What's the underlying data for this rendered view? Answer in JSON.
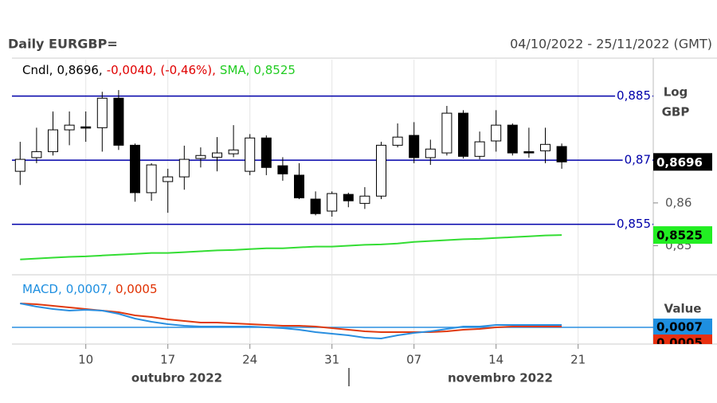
{
  "header": {
    "title": "Daily EURGBP=",
    "date_range": "04/10/2022 - 25/11/2022 (GMT)"
  },
  "chart_data": [
    {
      "type": "candlestick",
      "legend": [
        {
          "text": "Cndl,",
          "color": "#000000"
        },
        {
          "text": "0,8696,",
          "color": "#000000"
        },
        {
          "text": "-0,0040,",
          "color": "#e00000"
        },
        {
          "text": "(-0,46%),",
          "color": "#e00000"
        },
        {
          "text": "SMA,",
          "color": "#22cc22"
        },
        {
          "text": "0,8525",
          "color": "#22cc22"
        }
      ],
      "categories": [
        null,
        null,
        null,
        null,
        "10",
        null,
        null,
        null,
        null,
        "17",
        null,
        null,
        null,
        null,
        "24",
        null,
        null,
        null,
        null,
        "31",
        null,
        null,
        null,
        null,
        "07",
        null,
        null,
        null,
        null,
        "14",
        null,
        null,
        null,
        null,
        "21",
        null,
        null,
        null,
        null
      ],
      "months": [
        "outubro 2022",
        "novembro 2022"
      ],
      "series": [
        {
          "name": "Cndl",
          "up_color": "#ffffff",
          "down_color": "#000000",
          "open": [
            0.8674,
            0.8706,
            0.872,
            0.8771,
            0.8778,
            0.8776,
            0.8845,
            0.8735,
            0.8624,
            0.865,
            0.8661,
            0.8704,
            0.8707,
            0.8715,
            0.8674,
            0.8752,
            0.8687,
            0.8665,
            0.8609,
            0.8581,
            0.862,
            0.8599,
            0.8616,
            0.8735,
            0.8758,
            0.8706,
            0.8717,
            0.881,
            0.8709,
            0.8745,
            0.8782,
            0.872,
            0.8722,
            0.8732,
            null,
            null,
            null,
            null,
            null
          ],
          "high": [
            0.8743,
            0.8776,
            0.8814,
            0.8814,
            0.8814,
            0.886,
            0.8864,
            0.8739,
            0.8693,
            0.868,
            0.8734,
            0.873,
            0.8754,
            0.8782,
            0.8761,
            0.8758,
            0.8707,
            0.8693,
            0.8627,
            0.8627,
            0.8624,
            0.8637,
            0.8743,
            0.8786,
            0.8789,
            0.8748,
            0.8827,
            0.8817,
            0.8767,
            0.8817,
            0.8786,
            0.8776,
            0.8776,
            0.8739,
            null,
            null,
            null,
            null,
            null
          ],
          "low": [
            0.8642,
            0.8693,
            0.8711,
            0.8735,
            0.8743,
            0.872,
            0.8724,
            0.8603,
            0.8605,
            0.8577,
            0.8631,
            0.8683,
            0.8674,
            0.8707,
            0.8665,
            0.8665,
            0.8652,
            0.8609,
            0.8571,
            0.8568,
            0.859,
            0.8586,
            0.8609,
            0.873,
            0.8693,
            0.8689,
            0.8711,
            0.8704,
            0.8702,
            0.872,
            0.8711,
            0.8706,
            0.8693,
            0.868,
            null,
            null,
            null,
            null,
            null
          ],
          "close": [
            0.8702,
            0.872,
            0.8771,
            0.8782,
            0.8775,
            0.8845,
            0.8735,
            0.8624,
            0.8689,
            0.8661,
            0.8702,
            0.8711,
            0.8717,
            0.8724,
            0.8752,
            0.8683,
            0.8668,
            0.8612,
            0.8575,
            0.8622,
            0.8605,
            0.8616,
            0.8735,
            0.8754,
            0.8706,
            0.8726,
            0.881,
            0.8709,
            0.8743,
            0.8782,
            0.8717,
            0.8717,
            0.8737,
            0.8696,
            null,
            null,
            null,
            null,
            null
          ]
        },
        {
          "name": "SMA",
          "color": "#33dd33",
          "values": [
            0.8468,
            0.847,
            0.8472,
            0.8474,
            0.8475,
            0.8477,
            0.8479,
            0.8481,
            0.8483,
            0.8483,
            0.8485,
            0.8487,
            0.8489,
            0.849,
            0.8492,
            0.8494,
            0.8494,
            0.8496,
            0.8498,
            0.8498,
            0.85,
            0.8502,
            0.8503,
            0.8505,
            0.8509,
            0.8511,
            0.8513,
            0.8515,
            0.8516,
            0.8518,
            0.852,
            0.8522,
            0.8524,
            0.8525,
            null,
            null,
            null,
            null,
            null
          ]
        }
      ],
      "ylim": [
        0.8432,
        0.8935
      ],
      "yticks": [
        {
          "value": 0.86,
          "label": "0,86"
        },
        {
          "value": 0.85,
          "label": "0,85"
        }
      ],
      "hline_color": "#0000aa",
      "hlines": [
        {
          "value": 0.885,
          "label": "0,885"
        },
        {
          "value": 0.87,
          "label": "0,87"
        },
        {
          "value": 0.855,
          "label": "0,855"
        }
      ],
      "axis_labels": [
        "Log",
        "GBP"
      ],
      "price_tags": [
        {
          "value": 0.8696,
          "label": "0,8696",
          "color": "#000000",
          "text_color": "#ffffff"
        },
        {
          "value": 0.8525,
          "label": "0,8525",
          "color": "#22ee22",
          "text_color": "#000000"
        }
      ]
    },
    {
      "type": "line",
      "legend": [
        {
          "text": "MACD,",
          "color": "#1e8fe0"
        },
        {
          "text": "0,0007,",
          "color": "#1e8fe0"
        },
        {
          "text": "0,0005",
          "color": "#e03000"
        }
      ],
      "series": [
        {
          "color": "#2a8fe0",
          "values": [
            0.0034,
            0.003,
            0.0027,
            0.0025,
            0.0026,
            0.0025,
            0.0021,
            0.0015,
            0.0011,
            0.0008,
            0.0006,
            0.0005,
            0.0005,
            0.0005,
            0.0005,
            0.0004,
            0.0003,
            0.0001,
            -0.0002,
            -0.0004,
            -0.0006,
            -0.0009,
            -0.001,
            -0.0006,
            -0.0003,
            -0.0001,
            0.0002,
            0.0005,
            0.0005,
            0.0007,
            0.0007,
            0.0007,
            0.0007,
            0.0007,
            null,
            null,
            null,
            null,
            null
          ]
        },
        {
          "color": "#e03a10",
          "values": [
            0.0034,
            0.0033,
            0.0031,
            0.0029,
            0.0027,
            0.0025,
            0.0023,
            0.0019,
            0.0017,
            0.0014,
            0.0012,
            0.001,
            0.001,
            0.0009,
            0.0008,
            0.0007,
            0.0006,
            0.0006,
            0.0005,
            0.0003,
            0.0001,
            -0.0001,
            -0.0002,
            -0.0002,
            -0.0002,
            -0.0002,
            -0.0001,
            0.0001,
            0.0002,
            0.0004,
            0.0005,
            0.0005,
            0.0005,
            0.0005,
            null,
            null,
            null,
            null,
            null
          ]
        }
      ],
      "ylim": [
        -0.0017,
        0.0067
      ],
      "axis_label": "Value",
      "value_tags": [
        {
          "value": 0.0007,
          "label": "0,0007",
          "color": "#1e8fe0"
        },
        {
          "value": 0.0005,
          "label": "0,0005",
          "color": "#e83010"
        }
      ]
    }
  ]
}
